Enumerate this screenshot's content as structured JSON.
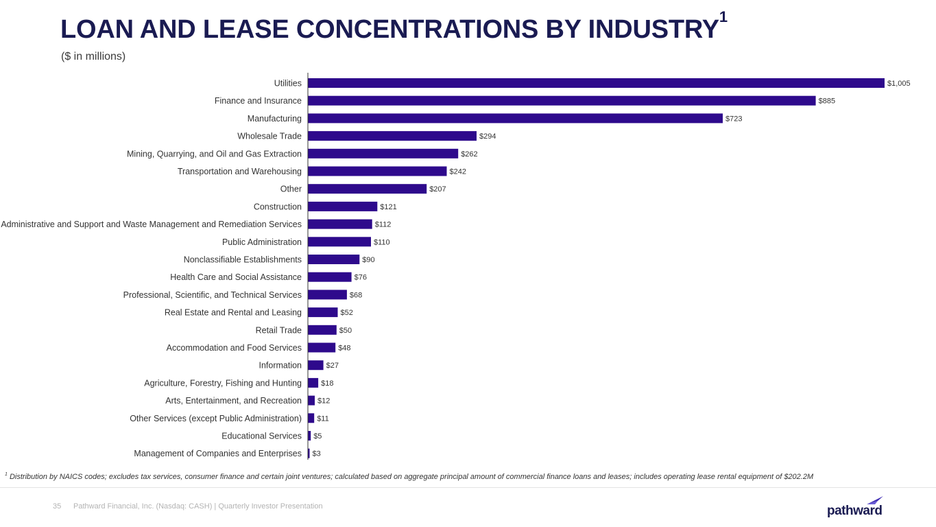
{
  "header": {
    "title": "LOAN AND LEASE CONCENTRATIONS BY INDUSTRY",
    "title_superscript": "1",
    "subtitle": "($ in millions)"
  },
  "colors": {
    "bar": "#2e0a8c",
    "title": "#1a1b52",
    "axis": "#333333"
  },
  "chart_data": {
    "type": "bar",
    "orientation": "horizontal",
    "categories": [
      "Utilities",
      "Finance and Insurance",
      "Manufacturing",
      "Wholesale Trade",
      "Mining, Quarrying, and Oil and Gas Extraction",
      "Transportation and Warehousing",
      "Other",
      "Construction",
      "Administrative and Support and Waste Management and Remediation Services",
      "Public Administration",
      "Nonclassifiable Establishments",
      "Health Care and Social Assistance",
      "Professional, Scientific, and Technical Services",
      "Real Estate and Rental and Leasing",
      "Retail Trade",
      "Accommodation and Food Services",
      "Information",
      "Agriculture, Forestry, Fishing and Hunting",
      "Arts, Entertainment, and Recreation",
      "Other Services (except Public Administration)",
      "Educational Services",
      "Management of Companies and Enterprises"
    ],
    "values": [
      1005,
      885,
      723,
      294,
      262,
      242,
      207,
      121,
      112,
      110,
      90,
      76,
      68,
      52,
      50,
      48,
      27,
      18,
      12,
      11,
      5,
      3
    ],
    "data_labels": [
      "$1,005",
      "$885",
      "$723",
      "$294",
      "$262",
      "$242",
      "$207",
      "$121",
      "$112",
      "$110",
      "$90",
      "$76",
      "$68",
      "$52",
      "$50",
      "$48",
      "$27",
      "$18",
      "$12",
      "$11",
      "$5",
      "$3"
    ],
    "xlim": [
      0,
      1005
    ],
    "grid": false,
    "legend": "none"
  },
  "footnote": {
    "marker": "1",
    "text": " Distribution by NAICS codes; excludes tax services, consumer finance and certain joint ventures; calculated based on aggregate principal amount of commercial finance loans and leases; includes operating lease rental equipment of $202.2M"
  },
  "footer": {
    "page_number": "35",
    "text": "Pathward Financial, Inc. (Nasdaq: CASH) | Quarterly Investor Presentation",
    "logo_text": "pathward"
  }
}
